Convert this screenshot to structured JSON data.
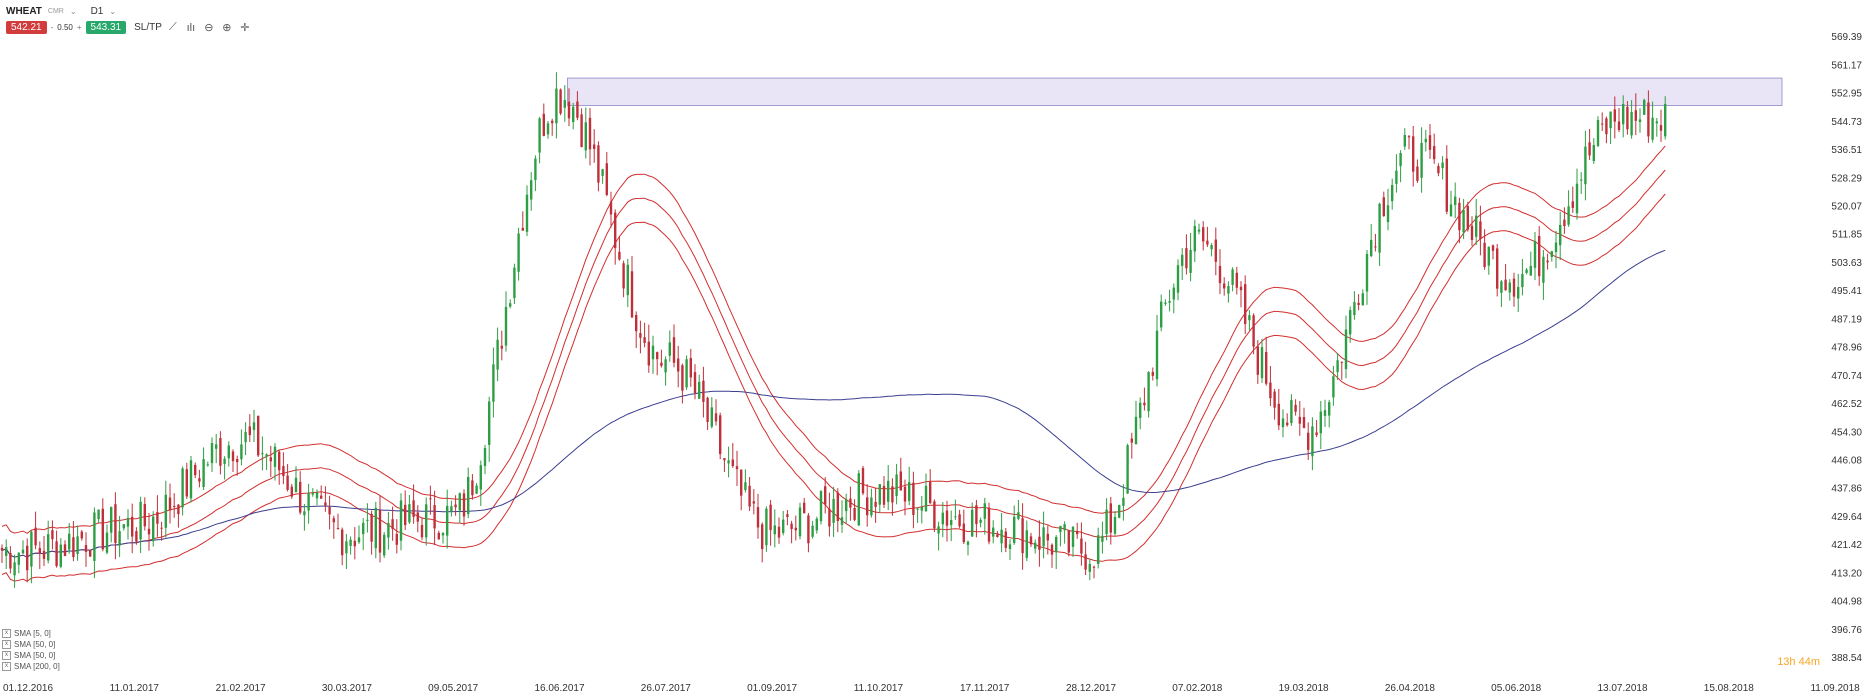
{
  "header": {
    "symbol": "WHEAT",
    "exchange": "CMR",
    "timeframe": "D1",
    "sell_price": "542.21",
    "lot_minus": "-",
    "lot_value": "0.50",
    "lot_plus": "+",
    "buy_price": "543.31",
    "sltp_label": "SL/TP"
  },
  "legend": [
    {
      "label": "SMA [5, 0]",
      "checked": "x"
    },
    {
      "label": "SMA [50, 0]",
      "checked": "x"
    },
    {
      "label": "SMA [50, 0]",
      "checked": "x"
    },
    {
      "label": "SMA [200, 0]",
      "checked": "x"
    }
  ],
  "countdown": "13h 44m",
  "colors": {
    "bull": "#2e9e44",
    "bear": "#c0303a",
    "sma_red": "#d22f2f",
    "sma_blue": "#3a3f8f",
    "zone_fill": "#e5e1f5",
    "zone_stroke": "#8f87c8"
  },
  "chart_data": {
    "type": "candlestick",
    "title": "",
    "xlabel": "",
    "ylabel": "",
    "ylim": [
      386.5,
      571.5
    ],
    "y_ticks": [
      "569.39",
      "561.17",
      "552.95",
      "544.73",
      "536.51",
      "528.29",
      "520.07",
      "511.85",
      "503.63",
      "495.41",
      "487.19",
      "478.96",
      "470.74",
      "462.52",
      "454.30",
      "446.08",
      "437.86",
      "429.64",
      "421.42",
      "413.20",
      "404.98",
      "396.76",
      "388.54"
    ],
    "x_ticks": [
      "01.12.2016",
      "11.01.2017",
      "21.02.2017",
      "30.03.2017",
      "09.05.2017",
      "16.06.2017",
      "26.07.2017",
      "01.09.2017",
      "11.10.2017",
      "17.11.2017",
      "28.12.2017",
      "07.02.2018",
      "19.03.2018",
      "26.04.2018",
      "05.06.2018",
      "13.07.2018",
      "15.08.2018",
      "11.09.2018"
    ],
    "candles_close_path": [
      [
        "01.12.2016",
        420
      ],
      [
        "11.01.2017",
        427
      ],
      [
        "21.02.2017",
        452
      ],
      [
        "30.03.2017",
        425
      ],
      [
        "09.05.2017",
        430
      ],
      [
        "16.06.2017",
        553
      ],
      [
        "26.07.2017",
        475
      ],
      [
        "01.09.2017",
        425
      ],
      [
        "11.10.2017",
        437
      ],
      [
        "17.11.2017",
        428
      ],
      [
        "28.12.2017",
        420
      ],
      [
        "07.02.2018",
        510
      ],
      [
        "19.03.2018",
        455
      ],
      [
        "26.04.2018",
        535
      ],
      [
        "05.06.2018",
        500
      ],
      [
        "13.07.2018",
        546
      ]
    ],
    "resistance_zone": {
      "low": 549.5,
      "high": 557.5,
      "from": "16.06.2017"
    },
    "series": [
      {
        "name": "SMA [5, 0]",
        "color": "#d22f2f"
      },
      {
        "name": "SMA [50, 0]",
        "color": "#d22f2f"
      },
      {
        "name": "SMA [50, 0]",
        "color": "#d22f2f"
      },
      {
        "name": "SMA [200, 0]",
        "color": "#3a3f8f"
      }
    ]
  }
}
